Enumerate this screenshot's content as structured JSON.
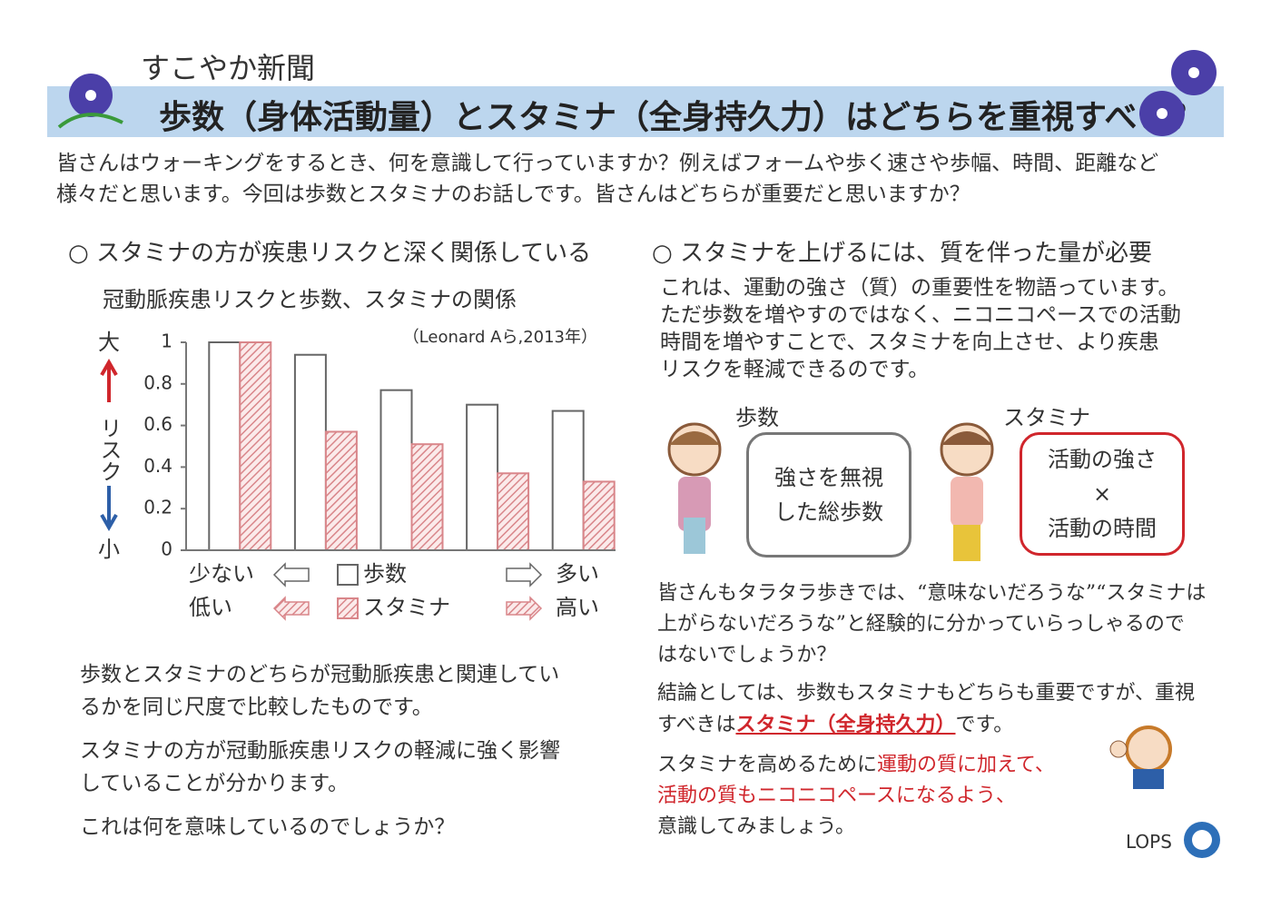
{
  "header": {
    "paper": "すこやか新聞",
    "title": "歩数（身体活動量）とスタミナ（全身持久力）はどちらを重視すべき？"
  },
  "intro": [
    "皆さんはウォーキングをするとき、何を意識して行っていますか？例えばフォームや歩く速さや歩幅、時間、距離など",
    "様々だと思います。今回は歩数とスタミナのお話しです。皆さんはどちらが重要だと思いますか？"
  ],
  "left": {
    "heading": "○ スタミナの方が疾患リスクと深く関係している",
    "paragraphs": [
      [
        "歩数とスタミナのどちらが冠動脈疾患と関連してい",
        "るかを同じ尺度で比較したものです。"
      ],
      [
        "スタミナの方が冠動脈疾患リスクの軽減に強く影響",
        "していることが分かります。"
      ],
      [
        "これは何を意味しているのでしょうか？"
      ]
    ]
  },
  "chart_data": {
    "type": "bar",
    "title": "冠動脈疾患リスクと歩数、スタミナの関係",
    "source": "（Leonard Aら,2013年）",
    "y_label": {
      "top": "大",
      "middle": "リスク",
      "bottom": "小"
    },
    "categories": [
      null,
      null,
      null,
      null,
      null
    ],
    "series": [
      {
        "name": "歩数",
        "color": "#ffffff",
        "pattern": "none",
        "low_label": "少ない",
        "high_label": "多い",
        "values": [
          1.0,
          0.94,
          0.77,
          0.7,
          0.67
        ]
      },
      {
        "name": "スタミナ",
        "color": "#d9868a",
        "pattern": "hatch",
        "low_label": "低い",
        "high_label": "高い",
        "values": [
          1.0,
          0.57,
          0.51,
          0.37,
          0.33
        ]
      }
    ],
    "ylim": [
      0,
      1
    ],
    "yticks": [
      0,
      0.2,
      0.4,
      0.6,
      0.8,
      1
    ],
    "grid": false
  },
  "right": {
    "heading": "○ スタミナを上げるには、質を伴った量が必要",
    "paragraph": [
      "これは、運動の強さ（質）の重要性を物語っています。",
      "ただ歩数を増やすのではなく、ニコニコペースでの活動",
      "時間を増やすことで、スタミナを向上させ、より疾患",
      "リスクを軽減できるのです。"
    ],
    "steps_label": "歩数",
    "steps_box": [
      "強さを無視",
      "した総歩数"
    ],
    "stamina_label": "スタミナ",
    "stamina_box": [
      "活動の強さ",
      "×",
      "活動の時間"
    ],
    "paragraph2": [
      "皆さんもタラタラ歩きでは、“意味ないだろうな”“スタミナは",
      "上がらないだろうな”と経験的に分かっていらっしゃるので",
      "はないでしょうか？"
    ],
    "conclusion": {
      "line1": "結論としては、歩数もスタミナもどちらも重要ですが、重視",
      "line2_before": "すべきは",
      "line2_emphasis": "スタミナ（全身持久力）",
      "line2_after": "です。"
    },
    "closing": {
      "line1_before": "スタミナを高めるために",
      "line1_red": "運動の質に加えて、",
      "line2_red": "活動の質もニコニコペースになるよう、",
      "line3": "意識してみましょう。"
    }
  },
  "footer": {
    "logo": "LOPS"
  }
}
